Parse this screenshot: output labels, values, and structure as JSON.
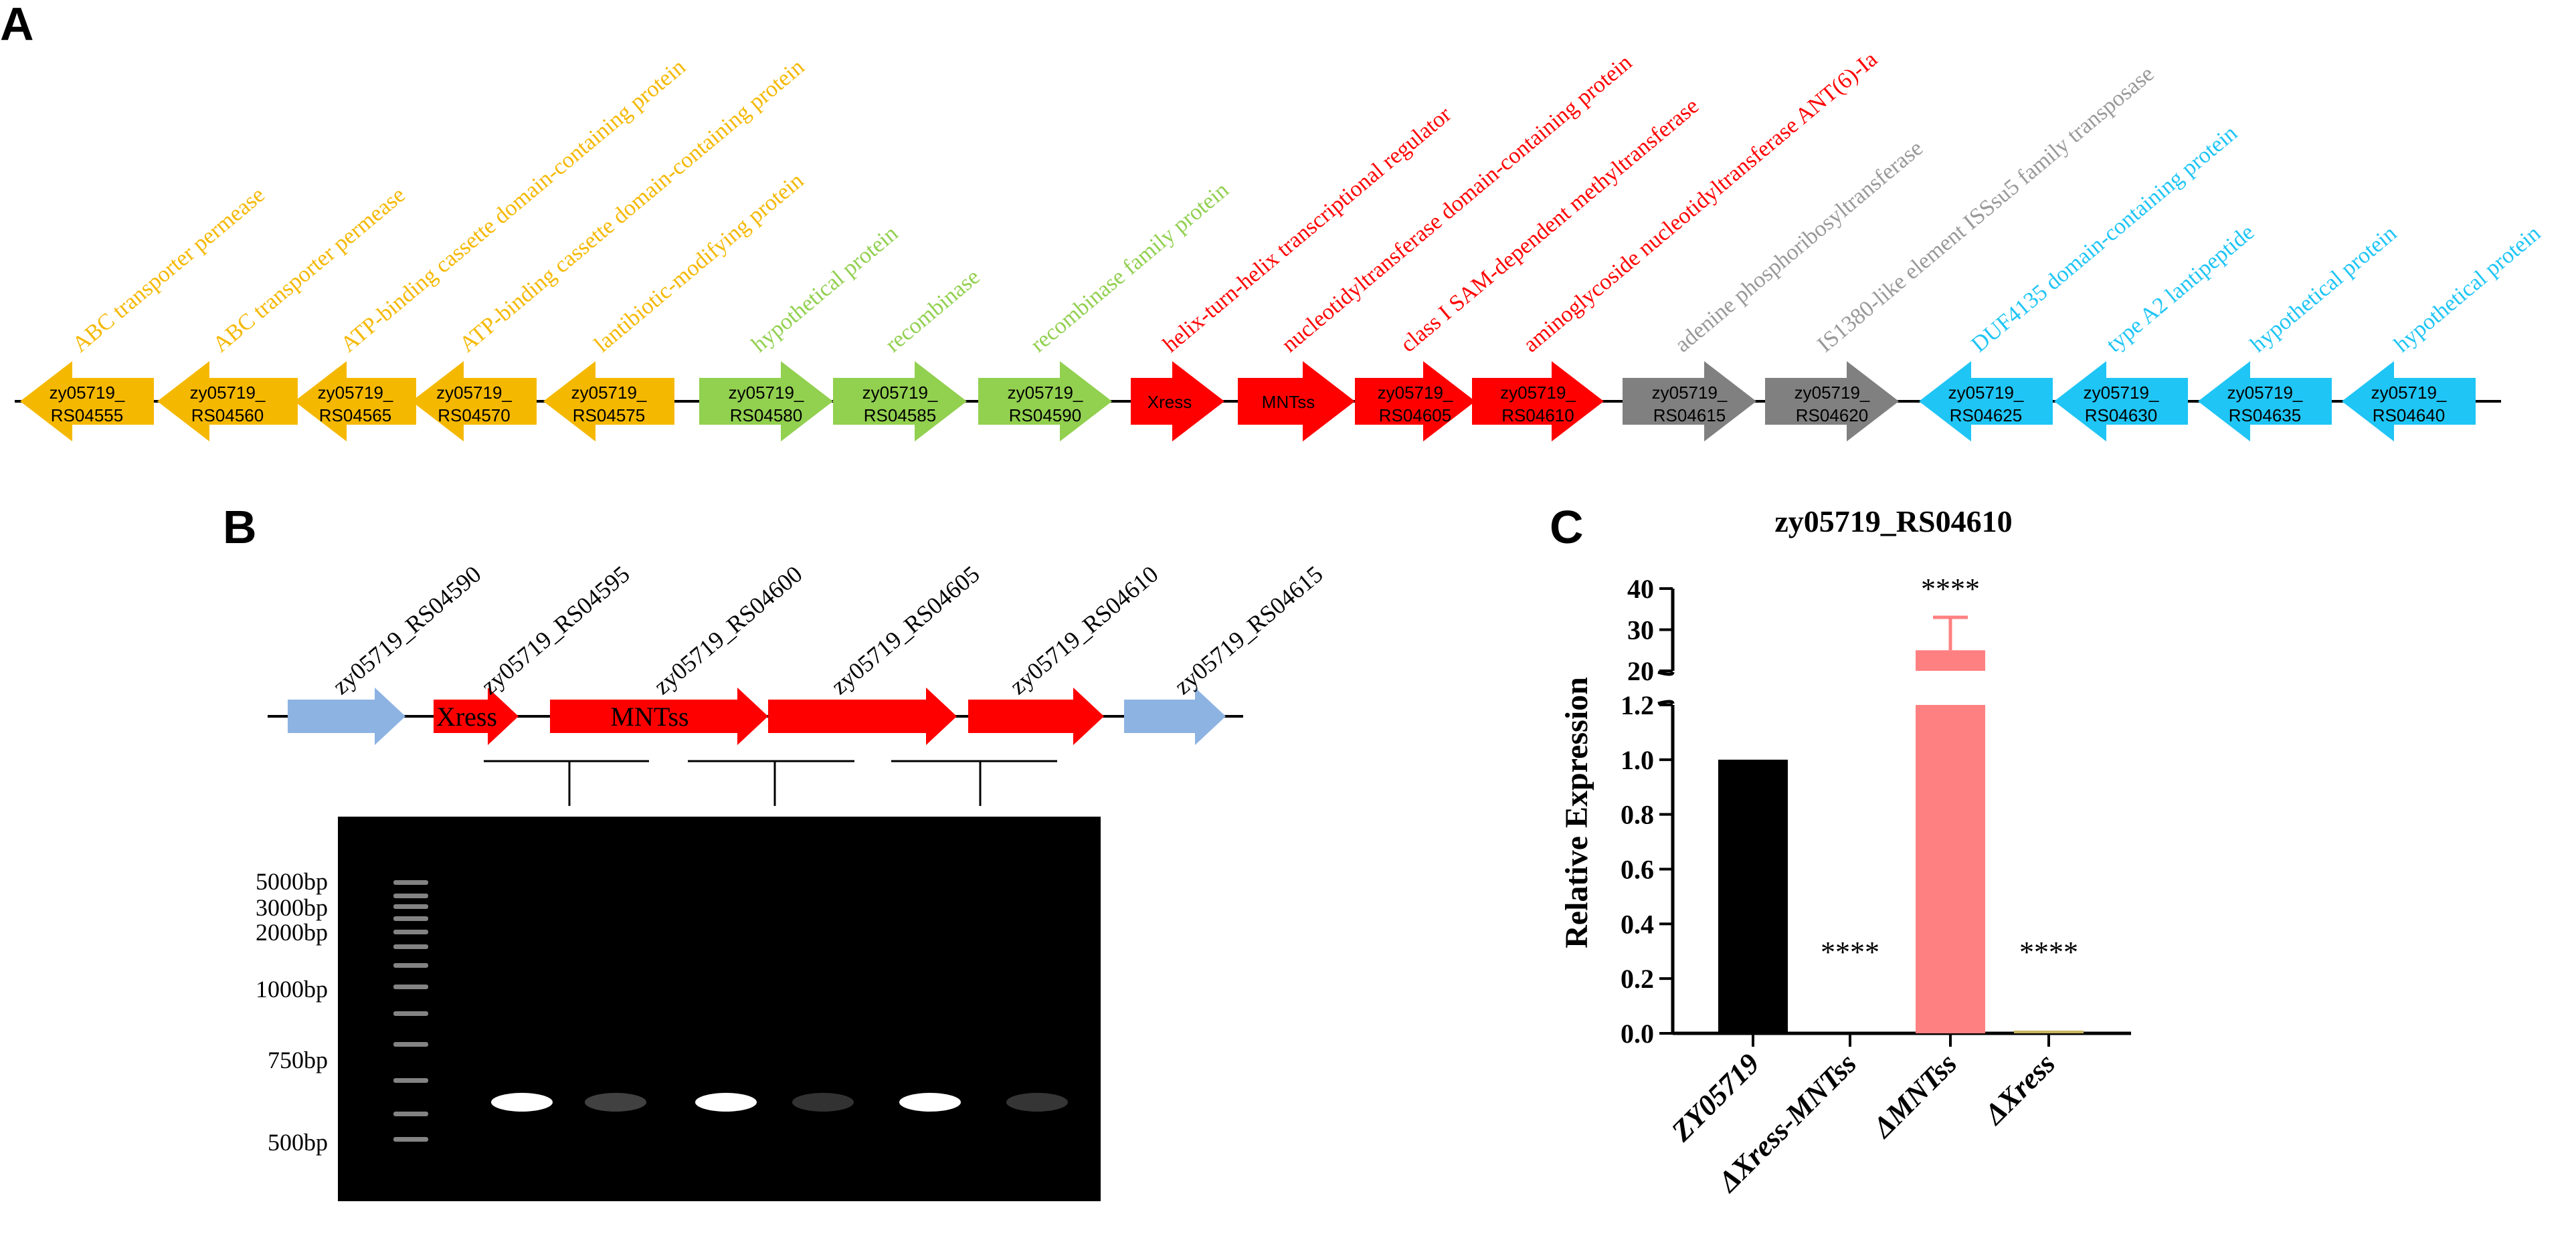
{
  "panels": {
    "a": {
      "letter": "A"
    },
    "b": {
      "letter": "B"
    },
    "c": {
      "letter": "C"
    }
  },
  "colors": {
    "orange": "#F5B800",
    "green": "#92D050",
    "red": "#FF0000",
    "gray": "#808080",
    "cyan": "#1FC5F5",
    "lightblue": "#8DB3E2",
    "pink": "#FF8080",
    "black": "#000000"
  },
  "operon_a": [
    {
      "id": "rs04555",
      "l1": "zy05719_",
      "l2": "RS04555",
      "dir": "left",
      "color": "orange",
      "annot": "ABC transporter permease"
    },
    {
      "id": "rs04560",
      "l1": "zy05719_",
      "l2": "RS04560",
      "dir": "left",
      "color": "orange",
      "annot": "ABC transporter permease"
    },
    {
      "id": "rs04565",
      "l1": "zy05719_",
      "l2": "RS04565",
      "dir": "left",
      "color": "orange",
      "annot": "ATP-binding cassette domain-containing protein"
    },
    {
      "id": "rs04570",
      "l1": "zy05719_",
      "l2": "RS04570",
      "dir": "left",
      "color": "orange",
      "annot": "ATP-binding cassette domain-containing protein"
    },
    {
      "id": "rs04575",
      "l1": "zy05719_",
      "l2": "RS04575",
      "dir": "left",
      "color": "orange",
      "annot": "lantibiotic-modifying protein"
    },
    {
      "id": "rs04580",
      "l1": "zy05719_",
      "l2": "RS04580",
      "dir": "right",
      "color": "green",
      "annot": "hypothetical protein"
    },
    {
      "id": "rs04585",
      "l1": "zy05719_",
      "l2": "RS04585",
      "dir": "right",
      "color": "green",
      "annot": "recombinase"
    },
    {
      "id": "rs04590",
      "l1": "zy05719_",
      "l2": "RS04590",
      "dir": "right",
      "color": "green",
      "annot": "recombinase family protein"
    },
    {
      "id": "xress",
      "l1": "Xress",
      "l2": "",
      "dir": "right",
      "color": "red",
      "annot": "helix-turn-helix transcriptional regulator"
    },
    {
      "id": "mntss",
      "l1": "MNTss",
      "l2": "",
      "dir": "right",
      "color": "red",
      "annot": "nucleotidyltransferase domain-containing protein"
    },
    {
      "id": "rs04605",
      "l1": "zy05719_",
      "l2": "RS04605",
      "dir": "right",
      "color": "red",
      "annot": "class I SAM-dependent methyltransferase"
    },
    {
      "id": "rs04610",
      "l1": "zy05719_",
      "l2": "RS04610",
      "dir": "right",
      "color": "red",
      "annot": "aminoglycoside nucleotidyltransferase ANT(6)-Ia"
    },
    {
      "id": "rs04615",
      "l1": "zy05719_",
      "l2": "RS04615",
      "dir": "right",
      "color": "gray",
      "annot": "adenine phosphoribosyltransferase"
    },
    {
      "id": "rs04620",
      "l1": "zy05719_",
      "l2": "RS04620",
      "dir": "right",
      "color": "gray",
      "annot": "IS1380-like element ISSsu5 family transposase"
    },
    {
      "id": "rs04625",
      "l1": "zy05719_",
      "l2": "RS04625",
      "dir": "left",
      "color": "cyan",
      "annot": "DUF4135 domain-containing protein"
    },
    {
      "id": "rs04630",
      "l1": "zy05719_",
      "l2": "RS04630",
      "dir": "left",
      "color": "cyan",
      "annot": "type A2 lantipeptide"
    },
    {
      "id": "rs04635",
      "l1": "zy05719_",
      "l2": "RS04635",
      "dir": "left",
      "color": "cyan",
      "annot": "hypothetical protein"
    },
    {
      "id": "rs04640",
      "l1": "zy05719_",
      "l2": "RS04640",
      "dir": "left",
      "color": "cyan",
      "annot": "hypothetical protein"
    }
  ],
  "operon_b": {
    "top_labels": [
      "zy05719_RS04590",
      "zy05719_RS04595",
      "zy05719_RS04600",
      "zy05719_RS04605",
      "zy05719_RS04610",
      "zy05719_RS04615"
    ],
    "genes": [
      {
        "id": "b-rs04590",
        "label": "",
        "color": "lightblue"
      },
      {
        "id": "b-xress",
        "label": "Xress",
        "color": "red"
      },
      {
        "id": "b-mntss",
        "label": "MNTss",
        "color": "red"
      },
      {
        "id": "b-rs04605",
        "label": "",
        "color": "red"
      },
      {
        "id": "b-rs04610",
        "label": "",
        "color": "red"
      },
      {
        "id": "b-rs04615",
        "label": "",
        "color": "lightblue"
      }
    ]
  },
  "gel": {
    "ladder_labels": [
      "5000bp",
      "3000bp",
      "2000bp",
      "1000bp",
      "750bp",
      "500bp"
    ],
    "bands": [
      {
        "lane": 1,
        "intensity": 1.0
      },
      {
        "lane": 2,
        "intensity": 0.25
      },
      {
        "lane": 3,
        "intensity": 1.0
      },
      {
        "lane": 4,
        "intensity": 0.12
      },
      {
        "lane": 5,
        "intensity": 1.0
      },
      {
        "lane": 6,
        "intensity": 0.15
      }
    ]
  },
  "chart_data": {
    "type": "bar",
    "title": "zy05719_RS04610",
    "ylabel": "Relative Expression",
    "xlabel": "",
    "categories": [
      "ZY05719",
      "ΔXress-MNTss",
      "ΔMNTss",
      "ΔXress"
    ],
    "values": [
      1.0,
      0.0,
      25.0,
      0.01
    ],
    "error_upper": [
      0,
      0,
      33,
      0
    ],
    "bar_colors": [
      "#000000",
      "#000000",
      "#FF8080",
      "#C8B560"
    ],
    "significance": [
      "",
      "****",
      "****",
      "****"
    ],
    "axis_break": {
      "lower": [
        0,
        1.2
      ],
      "upper": [
        20,
        40
      ]
    },
    "yticks_lower": [
      "0.0",
      "0.2",
      "0.4",
      "0.6",
      "0.8",
      "1.0",
      "1.2"
    ],
    "yticks_upper": [
      "20",
      "30",
      "40"
    ],
    "grid": false
  }
}
